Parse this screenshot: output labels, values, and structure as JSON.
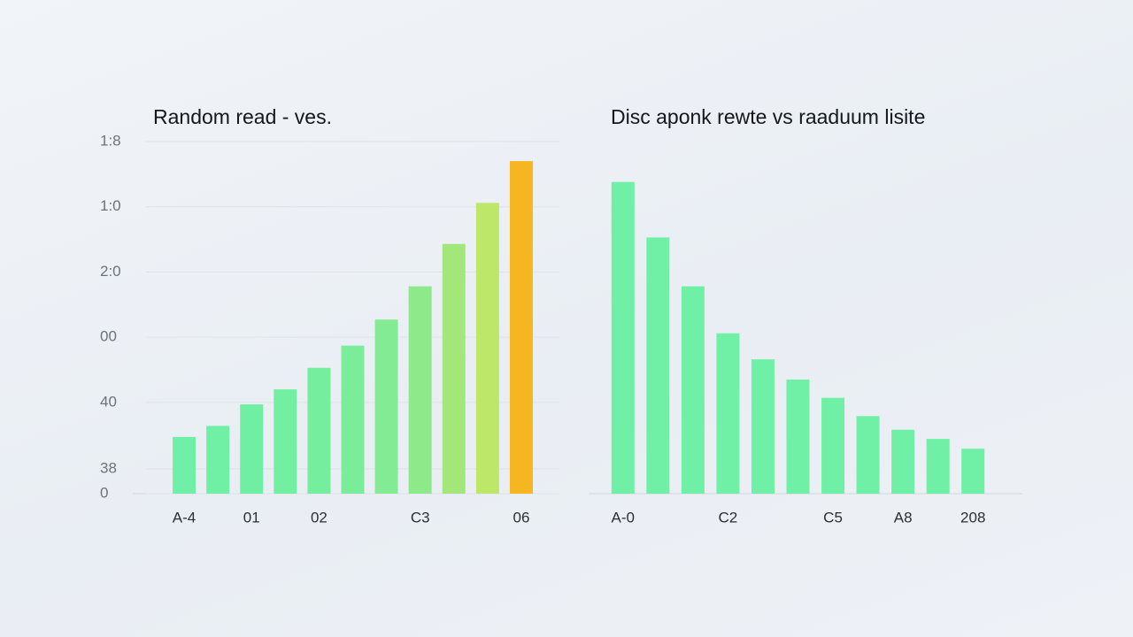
{
  "chart_data": [
    {
      "type": "bar",
      "title": "Random read  - ves.",
      "categories": [
        "A-4",
        null,
        "01",
        null,
        "02",
        null,
        null,
        "C3",
        null,
        null,
        "06"
      ],
      "values": [
        0.87,
        1.04,
        1.37,
        1.6,
        1.93,
        2.27,
        2.67,
        3.18,
        3.83,
        4.46,
        5.1
      ],
      "colors": [
        "#6ff0a6",
        "#6ff0a5",
        "#70efa3",
        "#72efa1",
        "#75ee9e",
        "#7bec99",
        "#82eb93",
        "#8ee98b",
        "#a3e77b",
        "#bce769",
        "#f5b622"
      ],
      "ylim": [
        0,
        5.4
      ],
      "yticks": [
        0,
        {
          "value": 0.38,
          "label": "38"
        },
        {
          "value": 1.4,
          "label": "40"
        },
        {
          "value": 2.4,
          "label": "00"
        },
        {
          "value": 3.4,
          "label": "2:0"
        },
        {
          "value": 4.4,
          "label": "1:0"
        },
        {
          "value": 5.4,
          "label": "1:8"
        }
      ],
      "grid": true
    },
    {
      "type": "bar",
      "title": "Disc aponk rewte vs  raaduum lisite",
      "categories": [
        "A-0",
        null,
        null,
        "C2",
        null,
        null,
        "C5",
        null,
        "A8",
        null,
        "208"
      ],
      "values": [
        4.78,
        3.93,
        3.18,
        2.46,
        2.06,
        1.75,
        1.47,
        1.19,
        0.98,
        0.84,
        0.69
      ],
      "color": "#6ff0a6",
      "ylim": [
        0,
        5.4
      ]
    }
  ]
}
